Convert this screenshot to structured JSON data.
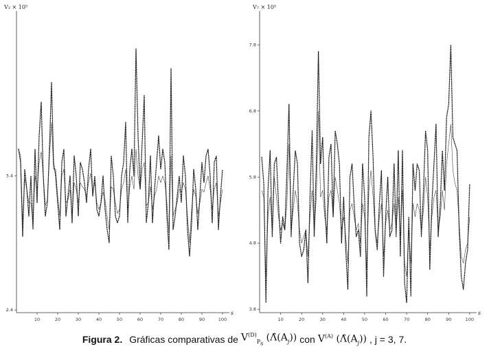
{
  "chart_data": [
    {
      "type": "line",
      "ylabel": "V₃ × 10⁵",
      "xlabel": "s",
      "x_ticks": [
        "10",
        "20",
        "30",
        "40",
        "50",
        "60",
        "70",
        "80",
        "90",
        "100"
      ],
      "y_ticks": [
        "2.4",
        "3.4"
      ],
      "xlim": [
        0,
        102
      ],
      "ylim": [
        2.38,
        4.6
      ],
      "series": [
        {
          "style": "solid",
          "values": [
            3.6,
            3.55,
            3.05,
            3.38,
            3.3,
            3.2,
            3.2,
            3.05,
            3.4,
            3.3,
            3.5,
            3.58,
            3.4,
            3.18,
            3.22,
            3.55,
            3.8,
            3.45,
            3.45,
            3.25,
            3.1,
            3.4,
            3.45,
            3.2,
            3.22,
            3.3,
            3.1,
            3.35,
            3.3,
            3.2,
            3.35,
            3.32,
            3.3,
            3.25,
            3.35,
            3.42,
            3.28,
            3.35,
            3.2,
            3.15,
            3.2,
            3.28,
            3.22,
            3.1,
            3.0,
            3.32,
            3.3,
            3.2,
            3.12,
            3.15,
            3.3,
            3.35,
            3.45,
            3.15,
            3.32,
            3.4,
            3.3,
            3.6,
            3.4,
            3.3,
            3.45,
            3.5,
            3.18,
            3.2,
            3.32,
            3.15,
            3.25,
            3.3,
            3.4,
            3.35,
            3.4,
            3.35,
            3.2,
            2.98,
            3.55,
            3.1,
            3.15,
            3.2,
            3.3,
            3.28,
            3.35,
            3.3,
            3.1,
            2.9,
            3.15,
            3.3,
            3.25,
            3.12,
            3.2,
            3.3,
            3.28,
            3.35,
            3.4,
            3.3,
            3.15,
            3.3,
            3.35,
            3.1,
            3.2,
            3.3
          ]
        },
        {
          "style": "dotted",
          "values": [
            3.6,
            3.5,
            2.95,
            3.45,
            3.3,
            3.1,
            3.4,
            3.0,
            3.6,
            3.2,
            3.7,
            3.95,
            3.4,
            3.1,
            3.2,
            3.6,
            4.1,
            3.5,
            3.4,
            3.2,
            3.0,
            3.5,
            3.6,
            3.1,
            3.25,
            3.4,
            3.05,
            3.55,
            3.4,
            3.1,
            3.5,
            3.45,
            3.35,
            3.2,
            3.45,
            3.6,
            3.25,
            3.4,
            3.15,
            3.1,
            3.2,
            3.4,
            3.15,
            3.0,
            2.9,
            3.55,
            3.4,
            3.1,
            3.05,
            3.1,
            3.4,
            3.5,
            3.8,
            3.05,
            3.45,
            3.6,
            3.4,
            4.35,
            3.7,
            3.3,
            3.65,
            4.0,
            3.05,
            3.2,
            3.55,
            3.05,
            3.3,
            3.5,
            3.7,
            3.45,
            3.6,
            3.5,
            3.1,
            2.85,
            4.2,
            3.0,
            3.1,
            3.25,
            3.4,
            3.2,
            3.55,
            3.4,
            3.0,
            2.8,
            3.05,
            3.45,
            3.3,
            3.0,
            3.25,
            3.5,
            3.35,
            3.55,
            3.6,
            3.4,
            3.05,
            3.5,
            3.55,
            3.0,
            3.25,
            3.45
          ]
        }
      ]
    },
    {
      "type": "line",
      "ylabel": "V₇ × 10⁵",
      "xlabel": "s",
      "x_ticks": [
        "10",
        "20",
        "30",
        "40",
        "50",
        "60",
        "70",
        "80",
        "90",
        "100"
      ],
      "y_ticks": [
        "3.8",
        "4.8",
        "5.8",
        "6.8",
        "7.8"
      ],
      "xlim": [
        0,
        102
      ],
      "ylim": [
        3.75,
        8.25
      ],
      "series": [
        {
          "style": "solid",
          "values": [
            5.6,
            5.5,
            4.3,
            5.2,
            5.5,
            5.0,
            5.8,
            5.5,
            5.2,
            5.0,
            5.1,
            5.0,
            5.4,
            6.3,
            5.0,
            5.3,
            5.6,
            5.4,
            5.0,
            4.8,
            4.9,
            5.0,
            4.6,
            5.2,
            5.6,
            5.0,
            5.5,
            6.8,
            5.5,
            5.6,
            5.2,
            5.0,
            5.5,
            5.6,
            5.2,
            5.8,
            5.6,
            5.4,
            5.0,
            5.2,
            4.9,
            4.5,
            5.3,
            5.4,
            5.2,
            5.0,
            5.1,
            4.8,
            5.4,
            5.2,
            4.4,
            5.6,
            5.9,
            5.5,
            5.0,
            4.8,
            5.2,
            5.4,
            4.6,
            5.1,
            5.3,
            5.0,
            5.1,
            5.4,
            5.0,
            5.5,
            4.9,
            5.6,
            4.5,
            4.3,
            5.0,
            4.5,
            5.4,
            5.2,
            5.4,
            5.3,
            5.0,
            5.3,
            5.8,
            5.5,
            4.7,
            5.2,
            5.5,
            5.6,
            5.0,
            5.2,
            5.6,
            5.3,
            6.0,
            6.3,
            6.6,
            5.9,
            5.7,
            5.6,
            5.1,
            4.6,
            4.5,
            4.7,
            4.8,
            5.2
          ]
        },
        {
          "style": "dotted",
          "values": [
            6.1,
            5.7,
            3.9,
            5.6,
            6.2,
            4.9,
            6.0,
            6.1,
            5.4,
            4.8,
            5.2,
            5.0,
            5.9,
            6.9,
            4.9,
            5.6,
            6.2,
            6.0,
            4.8,
            4.6,
            4.7,
            5.0,
            4.2,
            5.5,
            6.5,
            4.9,
            6.0,
            7.7,
            6.0,
            6.4,
            5.4,
            4.8,
            6.1,
            6.3,
            5.2,
            6.5,
            6.3,
            6.0,
            4.8,
            5.5,
            4.7,
            4.1,
            5.8,
            6.0,
            5.4,
            4.9,
            5.0,
            4.6,
            6.0,
            5.5,
            4.0,
            6.4,
            6.8,
            6.1,
            5.0,
            4.7,
            5.4,
            5.9,
            4.3,
            5.2,
            5.8,
            4.9,
            5.0,
            6.0,
            4.9,
            6.2,
            4.6,
            6.2,
            4.2,
            3.9,
            5.2,
            4.0,
            6.0,
            5.6,
            6.0,
            5.9,
            4.9,
            5.6,
            6.5,
            6.2,
            4.4,
            5.4,
            6.0,
            6.6,
            4.9,
            5.4,
            6.2,
            5.6,
            6.7,
            6.9,
            7.8,
            6.4,
            6.3,
            6.2,
            5.0,
            4.3,
            4.1,
            4.5,
            4.7,
            5.7
          ]
        }
      ]
    }
  ],
  "caption": {
    "label": "Figura 2.",
    "text_before": "Gráficas comparativas de",
    "v_first": "V",
    "v_first_sup": "(D)",
    "v_first_sub": "P",
    "v_first_subsub": "s",
    "arg": "Λ̂(A",
    "arg_sub": "j",
    "arg_close": "))",
    "text_mid": "con",
    "v_second": "V",
    "v_second_sup": "(A)",
    "text_after": ", j = 3, 7."
  }
}
